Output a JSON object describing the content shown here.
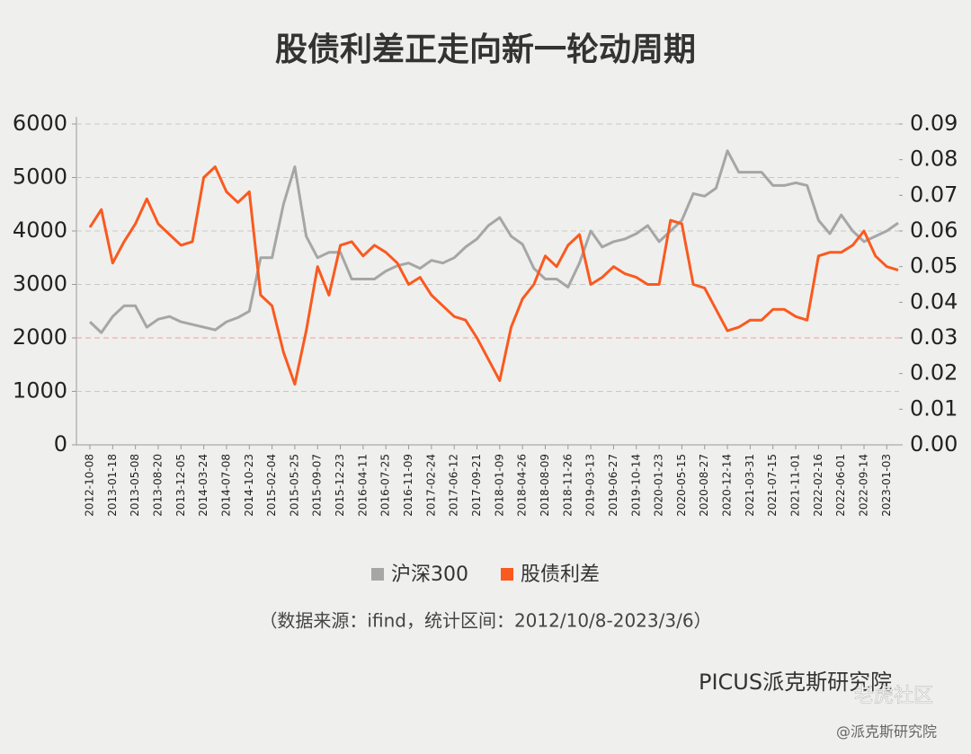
{
  "chart_data": {
    "type": "line",
    "title": "股债利差正走向新一轮动周期",
    "categories": [
      "2012-10-08",
      null,
      "2013-01-18",
      null,
      "2013-05-08",
      null,
      "2013-08-20",
      null,
      "2013-12-05",
      null,
      "2014-03-24",
      null,
      "2014-07-08",
      null,
      "2014-10-23",
      null,
      "2015-02-04",
      null,
      "2015-05-25",
      null,
      "2015-09-07",
      null,
      "2015-12-23",
      null,
      "2016-04-11",
      null,
      "2016-07-25",
      null,
      "2016-11-09",
      null,
      "2017-02-24",
      null,
      "2017-06-12",
      null,
      "2017-09-21",
      null,
      "2018-01-09",
      null,
      "2018-04-26",
      null,
      "2018-08-09",
      null,
      "2018-11-26",
      null,
      "2019-03-13",
      null,
      "2019-06-27",
      null,
      "2019-10-14",
      null,
      "2020-01-23",
      null,
      "2020-05-15",
      null,
      "2020-08-27",
      null,
      "2020-12-14",
      null,
      "2021-03-31",
      null,
      "2021-07-15",
      null,
      "2021-11-01",
      null,
      "2022-02-16",
      null,
      "2022-06-01",
      null,
      "2022-09-14",
      null,
      "2023-01-03",
      null
    ],
    "series": [
      {
        "name": "沪深300",
        "color": "#a6a6a6",
        "values": [
          2300,
          2100,
          2400,
          2600,
          2600,
          2200,
          2350,
          2400,
          2300,
          2250,
          2200,
          2150,
          2300,
          2380,
          2500,
          3500,
          3500,
          4500,
          5200,
          3900,
          3500,
          3600,
          3600,
          3100,
          3100,
          3100,
          3250,
          3350,
          3400,
          3300,
          3450,
          3400,
          3500,
          3700,
          3850,
          4100,
          4250,
          3900,
          3750,
          3300,
          3100,
          3100,
          2950,
          3400,
          4000,
          3700,
          3800,
          3850,
          3950,
          4100,
          3800,
          4000,
          4200,
          4700,
          4650,
          4800,
          5500,
          5100,
          5100,
          5100,
          4850,
          4850,
          4900,
          4850,
          4200,
          3950,
          4300,
          4000,
          3800,
          3900,
          4000,
          4150
        ]
      },
      {
        "name": "股债利差",
        "color": "#fa5a1e",
        "axis": "y2",
        "values": [
          0.061,
          0.066,
          0.051,
          0.057,
          0.062,
          0.069,
          0.062,
          0.059,
          0.056,
          0.057,
          0.075,
          0.078,
          0.071,
          0.068,
          0.071,
          0.042,
          0.039,
          0.026,
          0.017,
          0.032,
          0.05,
          0.042,
          0.056,
          0.057,
          0.053,
          0.056,
          0.054,
          0.051,
          0.045,
          0.047,
          0.042,
          0.039,
          0.036,
          0.035,
          0.03,
          0.024,
          0.018,
          0.033,
          0.041,
          0.045,
          0.053,
          0.05,
          0.056,
          0.059,
          0.045,
          0.047,
          0.05,
          0.048,
          0.047,
          0.045,
          0.045,
          0.063,
          0.062,
          0.045,
          0.044,
          0.038,
          0.032,
          0.033,
          0.035,
          0.035,
          0.038,
          0.038,
          0.036,
          0.035,
          0.053,
          0.054,
          0.054,
          0.056,
          0.06,
          0.053,
          0.05,
          0.049
        ]
      }
    ],
    "ylim": [
      0,
      6000
    ],
    "yticks": [
      0,
      1000,
      2000,
      3000,
      4000,
      5000,
      6000
    ],
    "y2lim": [
      0,
      0.09
    ],
    "y2ticks": [
      {
        "value": 0,
        "label": "0.00"
      },
      {
        "value": 0.01,
        "label": "0.01"
      },
      {
        "value": 0.02,
        "label": "0.02"
      },
      {
        "value": 0.03,
        "label": "0.03"
      },
      {
        "value": 0.04,
        "label": "0.04"
      },
      {
        "value": 0.05,
        "label": "0.05"
      },
      {
        "value": 0.06,
        "label": "0.06"
      },
      {
        "value": 0.07,
        "label": "0.07"
      },
      {
        "value": 0.08,
        "label": "0.08"
      },
      {
        "value": 0.09,
        "label": "0.09"
      }
    ],
    "grid": true,
    "reference_line": {
      "value": 2000,
      "color": "#f2a28c"
    },
    "legend": "bottom",
    "source": "（数据来源：ifind，统计区间：2012/10/8-2023/3/6）"
  },
  "footer": {
    "brand": "PICUS派克斯研究院",
    "watermark": "老虎社区",
    "handle": "@派克斯研究院"
  }
}
